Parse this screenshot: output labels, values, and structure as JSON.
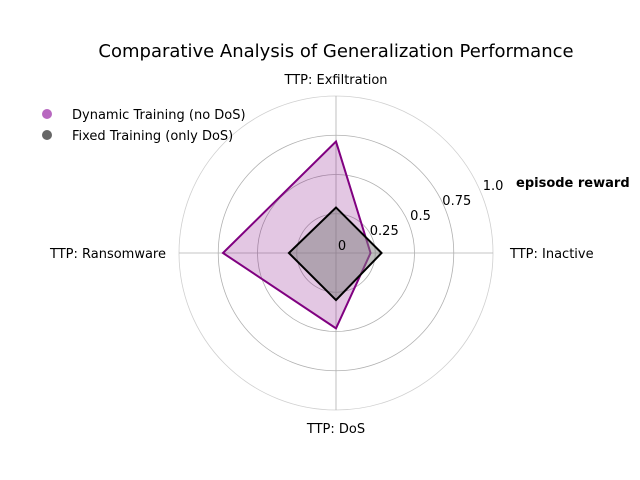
{
  "chart_data": {
    "type": "radar",
    "title": "Comparative Analysis of Generalization Performance",
    "radial_label": "episode reward",
    "categories": [
      "TTP: Inactive",
      "TTP: Exfiltration",
      "TTP: Ransomware",
      "TTP: DoS"
    ],
    "radial_ticks": [
      0,
      0.25,
      0.5,
      0.75,
      1.0
    ],
    "radial_tick_labels": [
      "0",
      "0.25",
      "0.5",
      "0.75",
      "1.0"
    ],
    "rlim": [
      0,
      1.0
    ],
    "grid": true,
    "legend_position": "top-left",
    "series": [
      {
        "name": "Dynamic Training (no DoS)",
        "values": [
          0.22,
          0.71,
          0.72,
          0.48
        ],
        "color": "#800080",
        "fill": "#800080",
        "fill_opacity": 0.22,
        "legend_marker_color": "#b868c0"
      },
      {
        "name": "Fixed Training (only DoS)",
        "values": [
          0.29,
          0.29,
          0.3,
          0.3
        ],
        "color": "#000000",
        "fill": "#808080",
        "fill_opacity": 0.5,
        "legend_marker_color": "#666666"
      }
    ]
  }
}
